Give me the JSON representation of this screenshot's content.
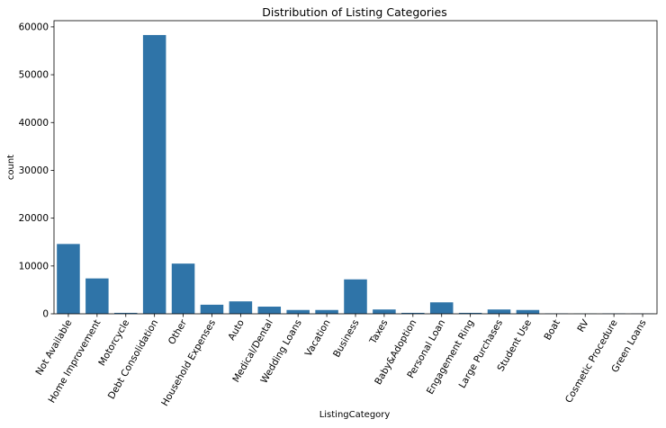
{
  "chart_data": {
    "type": "bar",
    "title": "Distribution of Listing Categories",
    "xlabel": "ListingCategory",
    "ylabel": "count",
    "ylim": [
      0,
      61300
    ],
    "yticks": [
      0,
      10000,
      20000,
      30000,
      40000,
      50000,
      60000
    ],
    "grid": false,
    "bar_color": "#2f74a8",
    "categories": [
      "Not Available",
      "Home Improvement",
      "Motorcycle",
      "Debt Consolidation",
      "Other",
      "Household Expenses",
      "Auto",
      "Medical/Dental",
      "Wedding Loans",
      "Vacation",
      "Business",
      "Taxes",
      "Baby&Adoption",
      "Personal Loan",
      "Engagement Ring",
      "Large Purchases",
      "Student Use",
      "Boat",
      "RV",
      "Cosmetic Procedure",
      "Green Loans"
    ],
    "values": [
      14600,
      7400,
      200,
      58300,
      10500,
      1900,
      2600,
      1500,
      800,
      800,
      7200,
      900,
      200,
      2400,
      200,
      900,
      800,
      80,
      50,
      80,
      60
    ]
  }
}
